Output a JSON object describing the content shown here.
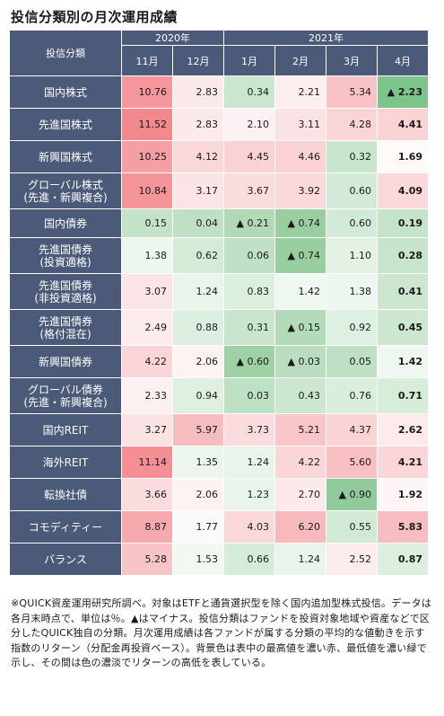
{
  "title": "投信分類別の月次運用成績",
  "header": {
    "category_label": "投信分類",
    "years": [
      "2020年",
      "2021年"
    ],
    "months": [
      "11月",
      "12月",
      "1月",
      "2月",
      "3月",
      "4月"
    ]
  },
  "rows": [
    {
      "label": "国内株式",
      "cells": [
        {
          "text": "10.76",
          "bg": "#f4969b"
        },
        {
          "text": "2.83",
          "bg": "#fce9ea"
        },
        {
          "text": "0.34",
          "bg": "#cbe6cf"
        },
        {
          "text": "2.21",
          "bg": "#fdeeef"
        },
        {
          "text": "5.34",
          "bg": "#f8c3c6"
        },
        {
          "text": "▲ 2.23",
          "bg": "#7cc489"
        }
      ]
    },
    {
      "label": "先進国株式",
      "cells": [
        {
          "text": "11.52",
          "bg": "#f3898f"
        },
        {
          "text": "2.83",
          "bg": "#fce9ea"
        },
        {
          "text": "2.10",
          "bg": "#fdf2f3"
        },
        {
          "text": "3.11",
          "bg": "#fbe2e4"
        },
        {
          "text": "4.28",
          "bg": "#fad5d7"
        },
        {
          "text": "4.41",
          "bg": "#fad3d5"
        }
      ]
    },
    {
      "label": "新興国株式",
      "cells": [
        {
          "text": "10.25",
          "bg": "#f59ea3"
        },
        {
          "text": "4.12",
          "bg": "#fad7d9"
        },
        {
          "text": "4.45",
          "bg": "#fad2d4"
        },
        {
          "text": "4.46",
          "bg": "#fad2d4"
        },
        {
          "text": "0.32",
          "bg": "#c9e5cd"
        },
        {
          "text": "1.69",
          "bg": "#fefafa"
        }
      ]
    },
    {
      "label": "グローバル株式\n(先進・新興複合)",
      "cells": [
        {
          "text": "10.84",
          "bg": "#f4959a"
        },
        {
          "text": "3.17",
          "bg": "#fbe4e5"
        },
        {
          "text": "3.67",
          "bg": "#fbdcde"
        },
        {
          "text": "3.92",
          "bg": "#fad9db"
        },
        {
          "text": "0.60",
          "bg": "#d3eadb"
        },
        {
          "text": "4.09",
          "bg": "#fbd8da"
        }
      ]
    },
    {
      "label": "国内債券",
      "cells": [
        {
          "text": "0.15",
          "bg": "#c3e2c8"
        },
        {
          "text": "0.04",
          "bg": "#bfe0c4"
        },
        {
          "text": "▲ 0.21",
          "bg": "#b1d9b7"
        },
        {
          "text": "▲ 0.74",
          "bg": "#99cea1"
        },
        {
          "text": "0.60",
          "bg": "#d3eadb"
        },
        {
          "text": "0.19",
          "bg": "#c4e3c9"
        }
      ]
    },
    {
      "label": "先進国債券\n(投資適格)",
      "cells": [
        {
          "text": "1.38",
          "bg": "#eef7ef"
        },
        {
          "text": "0.62",
          "bg": "#d4ebd8"
        },
        {
          "text": "0.06",
          "bg": "#c0e1c5"
        },
        {
          "text": "▲ 0.74",
          "bg": "#99cea1"
        },
        {
          "text": "1.10",
          "bg": "#e4f2e6"
        },
        {
          "text": "0.28",
          "bg": "#c8e4cc"
        }
      ]
    },
    {
      "label": "先進国債券\n(非投資適格)",
      "cells": [
        {
          "text": "3.07",
          "bg": "#fbe4e5"
        },
        {
          "text": "1.24",
          "bg": "#e9f4ea"
        },
        {
          "text": "0.83",
          "bg": "#dbefde"
        },
        {
          "text": "1.42",
          "bg": "#eff8f0"
        },
        {
          "text": "1.38",
          "bg": "#eef7ef"
        },
        {
          "text": "0.41",
          "bg": "#cce6d0"
        }
      ]
    },
    {
      "label": "先進国債券\n(格付混在)",
      "cells": [
        {
          "text": "2.49",
          "bg": "#fdeced"
        },
        {
          "text": "0.88",
          "bg": "#ddefe0"
        },
        {
          "text": "0.31",
          "bg": "#c9e5cd"
        },
        {
          "text": "▲ 0.15",
          "bg": "#b3dab9"
        },
        {
          "text": "0.92",
          "bg": "#def0e1"
        },
        {
          "text": "0.45",
          "bg": "#cde7d1"
        }
      ]
    },
    {
      "label": "新興国債券",
      "cells": [
        {
          "text": "4.22",
          "bg": "#fad6d8"
        },
        {
          "text": "2.06",
          "bg": "#fef3f3"
        },
        {
          "text": "▲ 0.60",
          "bg": "#9fd1a7"
        },
        {
          "text": "▲ 0.03",
          "bg": "#b9ddbe"
        },
        {
          "text": "0.05",
          "bg": "#bfe0c4"
        },
        {
          "text": "1.42",
          "bg": "#eff8f0"
        }
      ]
    },
    {
      "label": "グローバル債券\n(先進・新興複合)",
      "cells": [
        {
          "text": "2.33",
          "bg": "#fdf0f0"
        },
        {
          "text": "0.94",
          "bg": "#dff0e2"
        },
        {
          "text": "0.03",
          "bg": "#bee0c3"
        },
        {
          "text": "0.43",
          "bg": "#cce6d0"
        },
        {
          "text": "0.76",
          "bg": "#d9eedd"
        },
        {
          "text": "0.71",
          "bg": "#d7edda"
        }
      ]
    },
    {
      "label": "国内REIT",
      "cells": [
        {
          "text": "3.27",
          "bg": "#fbe2e4"
        },
        {
          "text": "5.97",
          "bg": "#f7bcbf"
        },
        {
          "text": "3.73",
          "bg": "#fbdbdd"
        },
        {
          "text": "5.21",
          "bg": "#f8c5c8"
        },
        {
          "text": "4.37",
          "bg": "#fad3d5"
        },
        {
          "text": "2.62",
          "bg": "#fdebec"
        }
      ]
    },
    {
      "label": "海外REIT",
      "cells": [
        {
          "text": "11.14",
          "bg": "#f38f95"
        },
        {
          "text": "1.35",
          "bg": "#edf6ee"
        },
        {
          "text": "1.24",
          "bg": "#e9f4ea"
        },
        {
          "text": "4.22",
          "bg": "#fad6d8"
        },
        {
          "text": "5.60",
          "bg": "#f8c0c3"
        },
        {
          "text": "4.21",
          "bg": "#fad6d8"
        }
      ]
    },
    {
      "label": "転換社債",
      "cells": [
        {
          "text": "3.66",
          "bg": "#fbdcde"
        },
        {
          "text": "2.06",
          "bg": "#fef3f3"
        },
        {
          "text": "1.23",
          "bg": "#e9f4ea"
        },
        {
          "text": "2.70",
          "bg": "#fce9ea"
        },
        {
          "text": "▲ 0.90",
          "bg": "#92cb9b"
        },
        {
          "text": "1.92",
          "bg": "#fef6f6"
        }
      ]
    },
    {
      "label": "コモディティー",
      "cells": [
        {
          "text": "8.87",
          "bg": "#f6aaae"
        },
        {
          "text": "1.77",
          "bg": "#fcf9f9"
        },
        {
          "text": "4.03",
          "bg": "#fbd8da"
        },
        {
          "text": "6.20",
          "bg": "#f7b9bc"
        },
        {
          "text": "0.55",
          "bg": "#d1e9d5"
        },
        {
          "text": "5.83",
          "bg": "#f7bdc0"
        }
      ]
    },
    {
      "label": "バランス",
      "cells": [
        {
          "text": "5.28",
          "bg": "#f8c4c7"
        },
        {
          "text": "1.53",
          "bg": "#f2f9f3"
        },
        {
          "text": "0.66",
          "bg": "#d5ecd9"
        },
        {
          "text": "1.24",
          "bg": "#e9f4ea"
        },
        {
          "text": "2.52",
          "bg": "#fdeced"
        },
        {
          "text": "0.87",
          "bg": "#dcefdf"
        }
      ]
    }
  ],
  "note": "※QUICK資産運用研究所調べ。対象はETFと通貨選択型を除く国内追加型株式投信。データは各月末時点で、単位は％。▲はマイナス。投信分類はファンドを投資対象地域や資産などで区分したQUICK独自の分類。月次運用成績は各ファンドが属する分類の平均的な値動きを示す指数のリターン（分配金再投資ベース）。背景色は表中の最高値を濃い赤、最低値を濃い緑で示し、その間は色の濃淡でリターンの高低を表している。"
}
